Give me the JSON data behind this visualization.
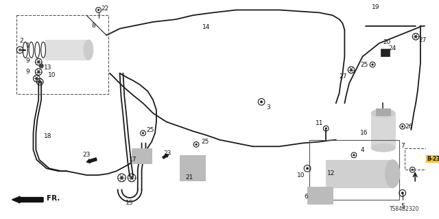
{
  "bg_color": "#ffffff",
  "diagram_code": "TS84B2320",
  "fig_width": 6.4,
  "fig_height": 3.19,
  "dpi": 100,
  "line_color": "#1a1a1a",
  "label_fontsize": 6.5,
  "diagram_code_fontsize": 5.5
}
